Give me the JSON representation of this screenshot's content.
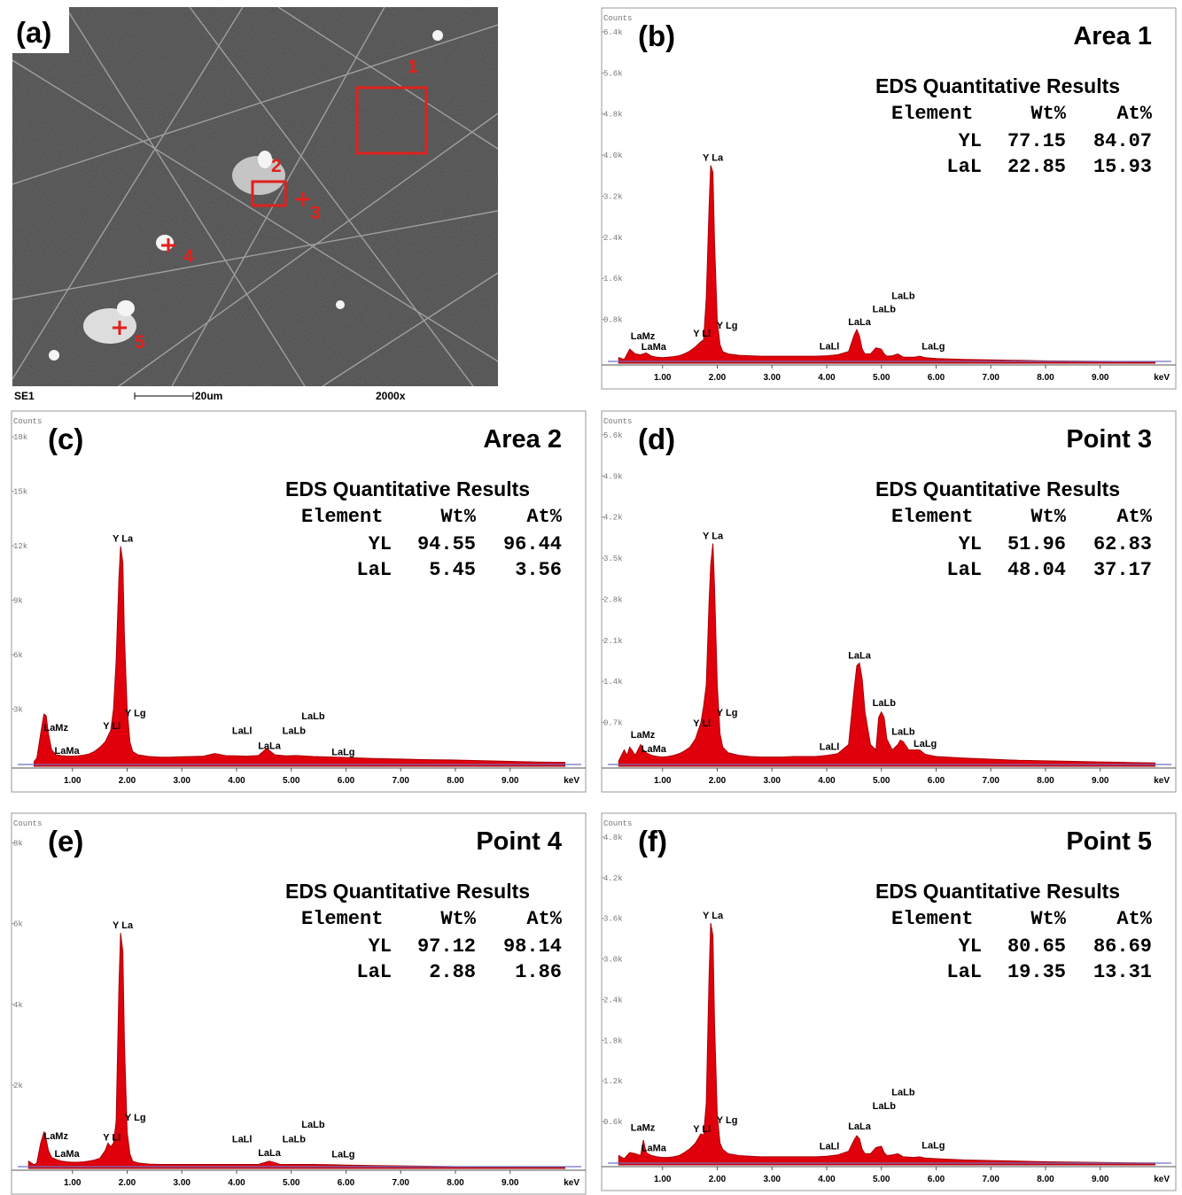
{
  "sem": {
    "label": "(a)",
    "markers": [
      "1",
      "2",
      "3",
      "4",
      "5"
    ],
    "footer": {
      "detector": "SE1",
      "scale": "20um",
      "magnification": "2000x"
    },
    "marker_color": "#e0201c"
  },
  "style": {
    "spectrum_fill": "#e0000b",
    "spectrum_stroke": "#a80008",
    "background_line": "#7070c0"
  },
  "table_headers": [
    "Element",
    "Wt%",
    "At%"
  ],
  "results_title": "EDS Quantitative Results",
  "counts_label": "Counts",
  "x_unit": "keV",
  "chart_data": [
    {
      "type": "area",
      "panel": "(b)",
      "title": "Area 1",
      "x": [
        0.2,
        0.3,
        0.4,
        0.5,
        0.6,
        0.7,
        0.8,
        0.9,
        1.0,
        1.1,
        1.2,
        1.3,
        1.4,
        1.5,
        1.6,
        1.7,
        1.75,
        1.8,
        1.85,
        1.88,
        1.92,
        1.95,
        2.0,
        2.05,
        2.1,
        2.2,
        2.4,
        2.6,
        2.8,
        3.0,
        3.2,
        3.4,
        3.6,
        3.8,
        4.0,
        4.2,
        4.4,
        4.5,
        4.55,
        4.6,
        4.65,
        4.7,
        4.8,
        4.9,
        5.0,
        5.05,
        5.1,
        5.2,
        5.3,
        5.4,
        5.6,
        5.7,
        5.8,
        6.0,
        6.5,
        7.0,
        7.5,
        8.0,
        8.5,
        9.0,
        9.5,
        10.0
      ],
      "values": [
        120,
        80,
        300,
        200,
        180,
        220,
        150,
        130,
        120,
        130,
        140,
        160,
        200,
        260,
        350,
        460,
        500,
        1400,
        3300,
        4250,
        4100,
        2600,
        900,
        400,
        250,
        200,
        170,
        160,
        150,
        150,
        150,
        150,
        150,
        150,
        160,
        180,
        250,
        600,
        720,
        580,
        300,
        200,
        200,
        330,
        300,
        200,
        150,
        160,
        200,
        130,
        130,
        150,
        120,
        100,
        80,
        70,
        60,
        50,
        45,
        40,
        35,
        30
      ],
      "yticks": [
        "0.8k",
        "1.6k",
        "2.4k",
        "3.2k",
        "4.0k",
        "4.8k",
        "5.6k",
        "6.4k"
      ],
      "ymax": 7000,
      "xlim": [
        0.0,
        10.3
      ],
      "xticks": [
        "1.00",
        "2.00",
        "3.00",
        "4.00",
        "5.00",
        "6.00",
        "7.00",
        "8.00",
        "9.00"
      ],
      "peaks": [
        {
          "label": "Y La",
          "x": 1.92,
          "y": 4250
        },
        {
          "label": "Y Lg",
          "x": 2.18,
          "y": 650
        },
        {
          "label": "Y Ll",
          "x": 1.72,
          "y": 480
        },
        {
          "label": "LaMz",
          "x": 0.64,
          "y": 420
        },
        {
          "label": "LaMa",
          "x": 0.84,
          "y": 190
        },
        {
          "label": "LaLl",
          "x": 4.05,
          "y": 200
        },
        {
          "label": "LaLa",
          "x": 4.6,
          "y": 720
        },
        {
          "label": "LaLb",
          "x": 5.05,
          "y": 1000
        },
        {
          "label": "LaLb",
          "x": 5.4,
          "y": 1280
        },
        {
          "label": "LaLg",
          "x": 5.95,
          "y": 200
        }
      ],
      "table": {
        "rows": [
          {
            "element": "YL",
            "wt": "77.15",
            "at": "84.07"
          },
          {
            "element": "LaL",
            "wt": "22.85",
            "at": "15.93"
          }
        ]
      }
    },
    {
      "type": "area",
      "panel": "(c)",
      "title": "Area 2",
      "x": [
        0.3,
        0.35,
        0.42,
        0.48,
        0.52,
        0.56,
        0.62,
        0.7,
        0.8,
        0.9,
        1.0,
        1.1,
        1.2,
        1.3,
        1.4,
        1.5,
        1.6,
        1.7,
        1.75,
        1.8,
        1.85,
        1.88,
        1.92,
        1.95,
        2.0,
        2.05,
        2.1,
        2.2,
        2.4,
        2.6,
        2.8,
        3.0,
        3.2,
        3.4,
        3.6,
        3.8,
        4.0,
        4.2,
        4.4,
        4.55,
        4.7,
        4.9,
        5.1,
        5.4,
        5.8,
        6.0,
        6.5,
        7.0,
        7.5,
        8.0,
        8.5,
        9.0,
        9.5,
        10.0
      ],
      "values": [
        300,
        500,
        2000,
        3200,
        3100,
        2000,
        1000,
        700,
        650,
        620,
        620,
        640,
        680,
        750,
        900,
        1150,
        1500,
        2200,
        3500,
        6500,
        11500,
        13500,
        12500,
        8000,
        3500,
        1500,
        900,
        700,
        600,
        560,
        560,
        580,
        600,
        620,
        780,
        650,
        640,
        620,
        660,
        1100,
        700,
        640,
        660,
        600,
        560,
        540,
        480,
        440,
        400,
        380,
        340,
        300,
        260,
        240
      ],
      "yticks": [
        "3k",
        "6k",
        "9k",
        "12k",
        "15k",
        "18k"
      ],
      "ymax": 20000,
      "xlim": [
        0.0,
        10.3
      ],
      "xticks": [
        "1.00",
        "2.00",
        "3.00",
        "4.00",
        "5.00",
        "6.00",
        "7.00",
        "8.00",
        "9.00"
      ],
      "peaks": [
        {
          "label": "Y La",
          "x": 1.92,
          "y": 13500
        },
        {
          "label": "Y Lg",
          "x": 2.15,
          "y": 2800
        },
        {
          "label": "Y Ll",
          "x": 1.72,
          "y": 2000
        },
        {
          "label": "LaMz",
          "x": 0.7,
          "y": 1900
        },
        {
          "label": "LaMa",
          "x": 0.9,
          "y": 500
        },
        {
          "label": "LaLl",
          "x": 4.1,
          "y": 1700
        },
        {
          "label": "LaLa",
          "x": 4.6,
          "y": 800
        },
        {
          "label": "LaLb",
          "x": 5.05,
          "y": 1700
        },
        {
          "label": "LaLb",
          "x": 5.4,
          "y": 2600
        },
        {
          "label": "LaLg",
          "x": 5.95,
          "y": 400
        }
      ],
      "table": {
        "rows": [
          {
            "element": "YL",
            "wt": "94.55",
            "at": "96.44"
          },
          {
            "element": "LaL",
            "wt": "5.45",
            "at": "3.56"
          }
        ]
      }
    },
    {
      "type": "area",
      "panel": "(d)",
      "title": "Point 3",
      "x": [
        0.2,
        0.3,
        0.35,
        0.4,
        0.45,
        0.5,
        0.6,
        0.65,
        0.7,
        0.8,
        0.9,
        1.0,
        1.1,
        1.2,
        1.3,
        1.4,
        1.5,
        1.6,
        1.7,
        1.75,
        1.8,
        1.85,
        1.88,
        1.92,
        1.95,
        2.0,
        2.05,
        2.1,
        2.2,
        2.4,
        2.6,
        2.8,
        3.0,
        3.2,
        3.4,
        3.6,
        3.8,
        4.0,
        4.2,
        4.4,
        4.5,
        4.55,
        4.6,
        4.65,
        4.7,
        4.8,
        4.9,
        4.95,
        5.0,
        5.05,
        5.1,
        5.2,
        5.3,
        5.35,
        5.4,
        5.5,
        5.6,
        5.7,
        5.8,
        5.9,
        6.0,
        6.5,
        7.0,
        7.5,
        8.0,
        8.5,
        9.0,
        9.5,
        10.0
      ],
      "values": [
        100,
        300,
        200,
        350,
        280,
        200,
        400,
        300,
        250,
        200,
        180,
        170,
        180,
        200,
        230,
        280,
        350,
        500,
        800,
        1100,
        1500,
        3000,
        3700,
        4100,
        3300,
        1500,
        600,
        350,
        250,
        200,
        180,
        170,
        170,
        170,
        180,
        180,
        180,
        200,
        230,
        400,
        1400,
        1850,
        1900,
        1600,
        1000,
        400,
        300,
        900,
        1000,
        900,
        500,
        300,
        400,
        480,
        450,
        300,
        300,
        300,
        220,
        200,
        180,
        150,
        130,
        110,
        100,
        90,
        80,
        70,
        60
      ],
      "yticks": [
        "0.7k",
        "1.4k",
        "2.1k",
        "2.8k",
        "3.5k",
        "4.2k",
        "4.9k",
        "5.6k"
      ],
      "ymax": 6000,
      "xlim": [
        0.0,
        10.3
      ],
      "xticks": [
        "1.00",
        "2.00",
        "3.00",
        "4.00",
        "5.00",
        "6.00",
        "7.00",
        "8.00",
        "9.00"
      ],
      "peaks": [
        {
          "label": "Y La",
          "x": 1.92,
          "y": 4100
        },
        {
          "label": "Y Lg",
          "x": 2.18,
          "y": 850
        },
        {
          "label": "Y Ll",
          "x": 1.72,
          "y": 650
        },
        {
          "label": "LaMz",
          "x": 0.64,
          "y": 440
        },
        {
          "label": "LaMa",
          "x": 0.84,
          "y": 180
        },
        {
          "label": "LaLl",
          "x": 4.05,
          "y": 220
        },
        {
          "label": "LaLa",
          "x": 4.6,
          "y": 1900
        },
        {
          "label": "LaLb",
          "x": 5.05,
          "y": 1030
        },
        {
          "label": "LaLb",
          "x": 5.4,
          "y": 500
        },
        {
          "label": "LaLg",
          "x": 5.8,
          "y": 280
        }
      ],
      "table": {
        "rows": [
          {
            "element": "YL",
            "wt": "51.96",
            "at": "62.83"
          },
          {
            "element": "LaL",
            "wt": "48.04",
            "at": "37.17"
          }
        ]
      }
    },
    {
      "type": "area",
      "panel": "(e)",
      "title": "Point 4",
      "x": [
        0.2,
        0.3,
        0.35,
        0.42,
        0.48,
        0.52,
        0.56,
        0.62,
        0.7,
        0.8,
        0.9,
        1.0,
        1.1,
        1.2,
        1.3,
        1.4,
        1.5,
        1.6,
        1.65,
        1.7,
        1.75,
        1.8,
        1.85,
        1.88,
        1.92,
        1.95,
        2.0,
        2.05,
        2.1,
        2.2,
        2.4,
        2.6,
        2.8,
        3.0,
        3.2,
        3.4,
        3.6,
        3.8,
        4.0,
        4.2,
        4.4,
        4.6,
        4.8,
        5.0,
        5.4,
        5.8,
        6.0,
        6.5,
        7.0,
        7.5,
        8.0,
        8.5,
        9.0,
        9.5,
        10.0
      ],
      "values": [
        200,
        100,
        150,
        700,
        1000,
        800,
        500,
        300,
        250,
        200,
        180,
        170,
        170,
        180,
        200,
        230,
        280,
        500,
        700,
        600,
        700,
        1300,
        5000,
        6500,
        6000,
        3500,
        1000,
        400,
        200,
        150,
        120,
        110,
        110,
        110,
        110,
        110,
        110,
        110,
        110,
        110,
        110,
        200,
        110,
        110,
        110,
        100,
        90,
        80,
        70,
        60,
        50,
        45,
        40,
        35,
        30
      ],
      "yticks": [
        "2k",
        "4k",
        "6k",
        "8k"
      ],
      "ymax": 9000,
      "xlim": [
        0.0,
        10.3
      ],
      "xticks": [
        "1.00",
        "2.00",
        "3.00",
        "4.00",
        "5.00",
        "6.00",
        "7.00",
        "8.00",
        "9.00"
      ],
      "peaks": [
        {
          "label": "Y La",
          "x": 1.92,
          "y": 6500
        },
        {
          "label": "Y Lg",
          "x": 2.15,
          "y": 1200
        },
        {
          "label": "Y Ll",
          "x": 1.72,
          "y": 650
        },
        {
          "label": "LaMz",
          "x": 0.7,
          "y": 680
        },
        {
          "label": "LaMa",
          "x": 0.9,
          "y": 200
        },
        {
          "label": "LaLl",
          "x": 4.1,
          "y": 600
        },
        {
          "label": "LaLa",
          "x": 4.6,
          "y": 220
        },
        {
          "label": "LaLb",
          "x": 5.05,
          "y": 600
        },
        {
          "label": "LaLb",
          "x": 5.4,
          "y": 1000
        },
        {
          "label": "LaLg",
          "x": 5.95,
          "y": 180
        }
      ],
      "table": {
        "rows": [
          {
            "element": "YL",
            "wt": "97.12",
            "at": "98.14"
          },
          {
            "element": "LaL",
            "wt": "2.88",
            "at": "1.86"
          }
        ]
      }
    },
    {
      "type": "area",
      "panel": "(f)",
      "title": "Point 5",
      "x": [
        0.2,
        0.3,
        0.4,
        0.5,
        0.6,
        0.65,
        0.7,
        0.8,
        0.9,
        1.0,
        1.1,
        1.2,
        1.3,
        1.4,
        1.5,
        1.6,
        1.7,
        1.75,
        1.8,
        1.85,
        1.88,
        1.92,
        1.95,
        2.0,
        2.05,
        2.1,
        2.2,
        2.4,
        2.6,
        2.8,
        3.0,
        3.2,
        3.4,
        3.6,
        3.8,
        4.0,
        4.2,
        4.4,
        4.5,
        4.55,
        4.6,
        4.65,
        4.7,
        4.8,
        4.9,
        5.0,
        5.05,
        5.1,
        5.2,
        5.3,
        5.4,
        5.6,
        5.7,
        5.8,
        6.0,
        6.5,
        7.0,
        7.5,
        8.0,
        8.5,
        9.0,
        9.5,
        10.0
      ],
      "values": [
        150,
        100,
        200,
        180,
        150,
        400,
        200,
        150,
        130,
        120,
        120,
        130,
        150,
        200,
        260,
        350,
        500,
        480,
        1000,
        3000,
        3900,
        3700,
        2300,
        800,
        350,
        250,
        180,
        150,
        140,
        130,
        130,
        130,
        130,
        130,
        130,
        140,
        160,
        220,
        400,
        470,
        420,
        250,
        180,
        180,
        280,
        300,
        200,
        150,
        160,
        180,
        130,
        120,
        130,
        110,
        100,
        80,
        70,
        60,
        50,
        45,
        40,
        35,
        30
      ],
      "yticks": [
        "0.6k",
        "1.2k",
        "1.8k",
        "2.4k",
        "3.0k",
        "3.6k",
        "4.2k",
        "4.8k"
      ],
      "ymax": 5200,
      "xlim": [
        0.0,
        10.3
      ],
      "xticks": [
        "1.00",
        "2.00",
        "3.00",
        "4.00",
        "5.00",
        "6.00",
        "7.00",
        "8.00",
        "9.00"
      ],
      "peaks": [
        {
          "label": "Y La",
          "x": 1.92,
          "y": 3900
        },
        {
          "label": "Y Lg",
          "x": 2.18,
          "y": 600
        },
        {
          "label": "Y Ll",
          "x": 1.72,
          "y": 460
        },
        {
          "label": "LaMz",
          "x": 0.64,
          "y": 480
        },
        {
          "label": "LaMa",
          "x": 0.84,
          "y": 150
        },
        {
          "label": "LaLl",
          "x": 4.05,
          "y": 180
        },
        {
          "label": "LaLa",
          "x": 4.6,
          "y": 500
        },
        {
          "label": "LaLb",
          "x": 5.05,
          "y": 830
        },
        {
          "label": "LaLb",
          "x": 5.4,
          "y": 1050
        },
        {
          "label": "LaLg",
          "x": 5.95,
          "y": 190
        }
      ],
      "table": {
        "rows": [
          {
            "element": "YL",
            "wt": "80.65",
            "at": "86.69"
          },
          {
            "element": "LaL",
            "wt": "19.35",
            "at": "13.31"
          }
        ]
      }
    }
  ]
}
